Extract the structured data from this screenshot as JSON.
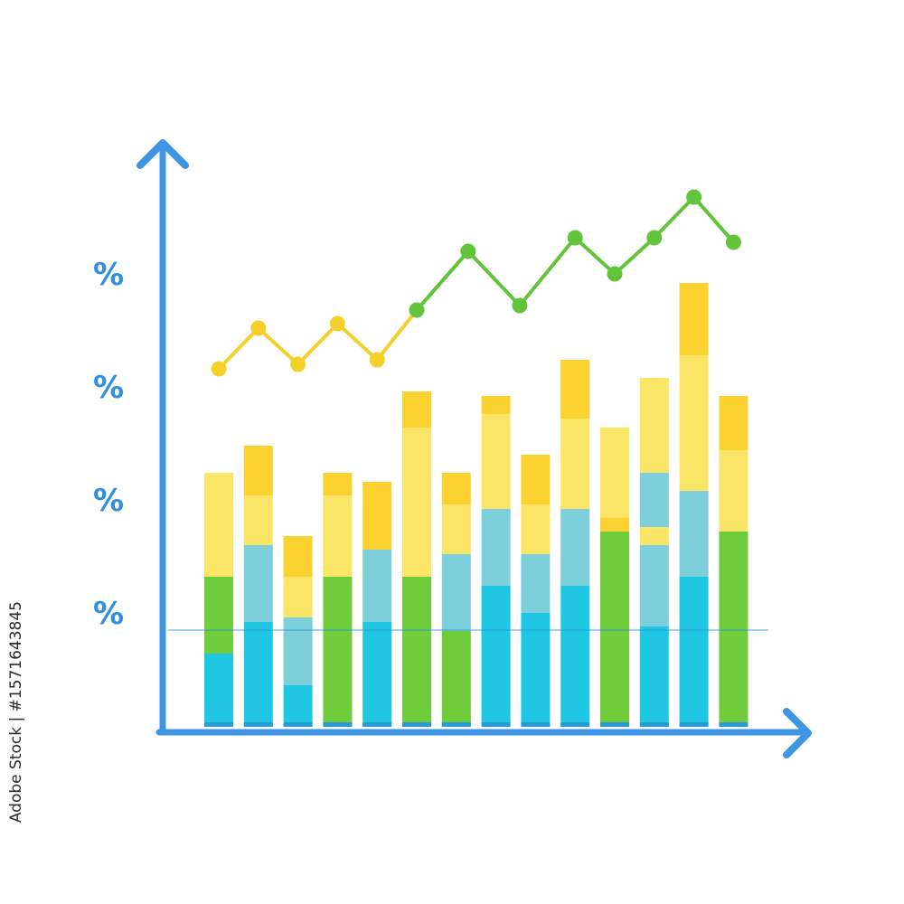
{
  "chart_data": {
    "type": "bar",
    "stacked": true,
    "ylim": [
      0,
      100
    ],
    "y_tick_values": [
      25,
      50,
      75,
      100
    ],
    "y_tick_labels": [
      "%",
      "%",
      "%",
      "%"
    ],
    "grid": false,
    "legend": "none",
    "columns": [
      {
        "segments": [
          {
            "v": 16,
            "c": "blue"
          },
          {
            "v": 17,
            "c": "green"
          },
          {
            "v": 23,
            "c": "yellow"
          }
        ]
      },
      {
        "segments": [
          {
            "v": 23,
            "c": "blue"
          },
          {
            "v": 17,
            "c": "teal"
          },
          {
            "v": 11,
            "c": "yellow"
          },
          {
            "v": 11,
            "c": "gold"
          }
        ]
      },
      {
        "segments": [
          {
            "v": 9,
            "c": "blue"
          },
          {
            "v": 15,
            "c": "teal"
          },
          {
            "v": 9,
            "c": "yellow"
          },
          {
            "v": 9,
            "c": "gold"
          }
        ]
      },
      {
        "segments": [
          {
            "v": 33,
            "c": "green"
          },
          {
            "v": 11,
            "c": "yellow"
          },
          {
            "v": 7,
            "c": "yellow"
          },
          {
            "v": 5,
            "c": "gold"
          }
        ]
      },
      {
        "segments": [
          {
            "v": 23,
            "c": "blue"
          },
          {
            "v": 16,
            "c": "teal"
          },
          {
            "v": 15,
            "c": "gold"
          }
        ]
      },
      {
        "segments": [
          {
            "v": 33,
            "c": "green"
          },
          {
            "v": 33,
            "c": "yellow"
          },
          {
            "v": 8,
            "c": "gold"
          }
        ]
      },
      {
        "segments": [
          {
            "v": 21,
            "c": "green"
          },
          {
            "v": 17,
            "c": "teal"
          },
          {
            "v": 11,
            "c": "yellow"
          },
          {
            "v": 7,
            "c": "gold"
          }
        ]
      },
      {
        "segments": [
          {
            "v": 31,
            "c": "blue"
          },
          {
            "v": 17,
            "c": "teal"
          },
          {
            "v": 21,
            "c": "yellow"
          },
          {
            "v": 4,
            "c": "gold"
          }
        ]
      },
      {
        "segments": [
          {
            "v": 25,
            "c": "blue"
          },
          {
            "v": 13,
            "c": "teal"
          },
          {
            "v": 11,
            "c": "yellow"
          },
          {
            "v": 11,
            "c": "gold"
          }
        ]
      },
      {
        "segments": [
          {
            "v": 31,
            "c": "blue"
          },
          {
            "v": 17,
            "c": "teal"
          },
          {
            "v": 20,
            "c": "yellow"
          },
          {
            "v": 13,
            "c": "gold"
          }
        ]
      },
      {
        "segments": [
          {
            "v": 43,
            "c": "green"
          },
          {
            "v": 3,
            "c": "gold"
          },
          {
            "v": 20,
            "c": "yellow"
          }
        ]
      },
      {
        "segments": [
          {
            "v": 22,
            "c": "blue"
          },
          {
            "v": 18,
            "c": "teal"
          },
          {
            "v": 4,
            "c": "yellow"
          },
          {
            "v": 12,
            "c": "teal"
          },
          {
            "v": 21,
            "c": "yellow"
          }
        ]
      },
      {
        "segments": [
          {
            "v": 33,
            "c": "blue"
          },
          {
            "v": 19,
            "c": "teal"
          },
          {
            "v": 30,
            "c": "yellow"
          },
          {
            "v": 16,
            "c": "gold"
          }
        ]
      },
      {
        "segments": [
          {
            "v": 43,
            "c": "green"
          },
          {
            "v": 18,
            "c": "yellow"
          },
          {
            "v": 12,
            "c": "gold"
          }
        ]
      }
    ],
    "trend_line": {
      "points": [
        {
          "x": 0,
          "y": 79,
          "c": "gold"
        },
        {
          "x": 1,
          "y": 88,
          "c": "gold"
        },
        {
          "x": 2,
          "y": 80,
          "c": "gold"
        },
        {
          "x": 3,
          "y": 89,
          "c": "gold"
        },
        {
          "x": 4,
          "y": 81,
          "c": "gold"
        },
        {
          "x": 5,
          "y": 92,
          "c": "green"
        },
        {
          "x": 6.3,
          "y": 105,
          "c": "green"
        },
        {
          "x": 7.6,
          "y": 93,
          "c": "green"
        },
        {
          "x": 9,
          "y": 108,
          "c": "green"
        },
        {
          "x": 10,
          "y": 100,
          "c": "green"
        },
        {
          "x": 11,
          "y": 108,
          "c": "green"
        },
        {
          "x": 12,
          "y": 117,
          "c": "green"
        },
        {
          "x": 13,
          "y": 107,
          "c": "green"
        }
      ]
    },
    "colors": {
      "axis": "#3d95e3",
      "label": "#2f8ee0",
      "blue": "#1fc7e3",
      "teal": "#7ccfdb",
      "green": "#6fcc3b",
      "yellow": "#fbe566",
      "gold": "#fbd22f",
      "band": "#2a9bd6",
      "line_gold": "#f5cf2a",
      "line_green": "#62c43a"
    }
  },
  "watermark": {
    "text": "Adobe Stock | #1571643845"
  }
}
